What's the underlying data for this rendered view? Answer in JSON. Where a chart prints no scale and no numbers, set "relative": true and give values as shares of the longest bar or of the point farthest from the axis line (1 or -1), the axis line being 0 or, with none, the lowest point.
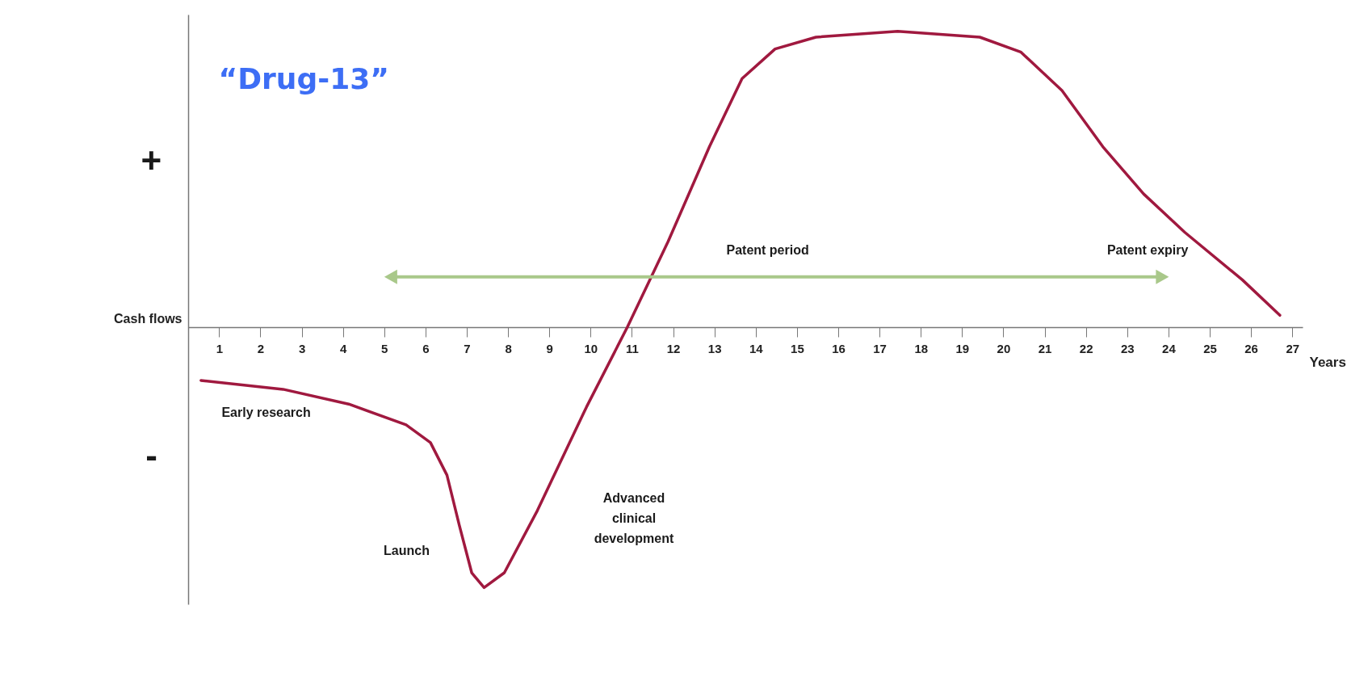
{
  "chart_data": {
    "type": "line",
    "title": "“Drug-13”",
    "xlabel": "Years",
    "ylabel": "Cash flows",
    "relative": true,
    "marker": "none",
    "line_style": "solid",
    "xlim": [
      0.25,
      27.25
    ],
    "xticks": [
      1,
      2,
      3,
      4,
      5,
      6,
      7,
      8,
      9,
      10,
      11,
      12,
      13,
      14,
      15,
      16,
      17,
      18,
      19,
      20,
      21,
      22,
      23,
      24,
      25,
      26,
      27
    ],
    "series": [
      {
        "color": "#a0193f",
        "x": [
          0.56,
          2.55,
          4.14,
          5.53,
          6.12,
          6.52,
          6.82,
          7.12,
          7.42,
          7.91,
          8.71,
          9.9,
          10.89,
          11.88,
          12.88,
          13.67,
          14.47,
          15.46,
          17.44,
          19.43,
          20.42,
          21.42,
          22.41,
          23.4,
          24.4,
          25.79,
          26.7
        ],
        "values": [
          -0.18,
          -0.21,
          -0.26,
          -0.33,
          -0.39,
          -0.5,
          -0.67,
          -0.83,
          -0.88,
          -0.83,
          -0.62,
          -0.27,
          0,
          0.29,
          0.61,
          0.84,
          0.94,
          0.98,
          1,
          0.98,
          0.93,
          0.8,
          0.61,
          0.45,
          0.32,
          0.16,
          0.04
        ]
      }
    ],
    "annotations": [
      "+",
      "-",
      "Patent period",
      "Patent expiry",
      "Early research",
      "Launch",
      "Advanced\nclinical\ndevelopment"
    ]
  }
}
